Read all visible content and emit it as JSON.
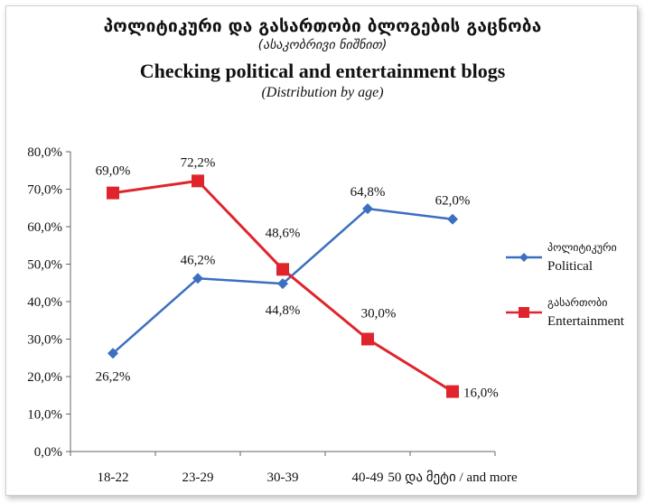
{
  "header": {
    "title_geo": "პოლიტიკური და გასართობი ბლოგების გაცნობა",
    "subtitle_geo": "(ასაკობრივი ნიშნით)",
    "title_en": "Checking political and entertainment blogs",
    "subtitle_en": "(Distribution by age)"
  },
  "colors": {
    "political": "#3b6fc0",
    "entertainment": "#e0242c",
    "axis": "#555555",
    "gridline": "#000000"
  },
  "chart_data": {
    "type": "line",
    "categories": [
      "18-22",
      "23-29",
      "30-39",
      "40-49",
      "50 და მეტი / and more"
    ],
    "ylim": [
      0,
      80
    ],
    "yticks": [
      "0,0%",
      "10,0%",
      "20,0%",
      "30,0%",
      "40,0%",
      "50,0%",
      "60,0%",
      "70,0%",
      "80,0%"
    ],
    "grid": false,
    "legend_placement": "right",
    "series": [
      {
        "key": "political",
        "name_geo": "პოლიტიკური",
        "name": "Political",
        "marker": "diamond",
        "values": [
          26.2,
          46.2,
          44.8,
          64.8,
          62.0
        ],
        "labels": [
          "26,2%",
          "46,2%",
          "44,8%",
          "64,8%",
          "62,0%"
        ]
      },
      {
        "key": "entertainment",
        "name_geo": "გასართობი",
        "name": "Entertainment",
        "marker": "square",
        "values": [
          69.0,
          72.2,
          48.6,
          30.0,
          16.0
        ],
        "labels": [
          "69,0%",
          "72,2%",
          "48,6%",
          "30,0%",
          "16,0%"
        ]
      }
    ]
  }
}
